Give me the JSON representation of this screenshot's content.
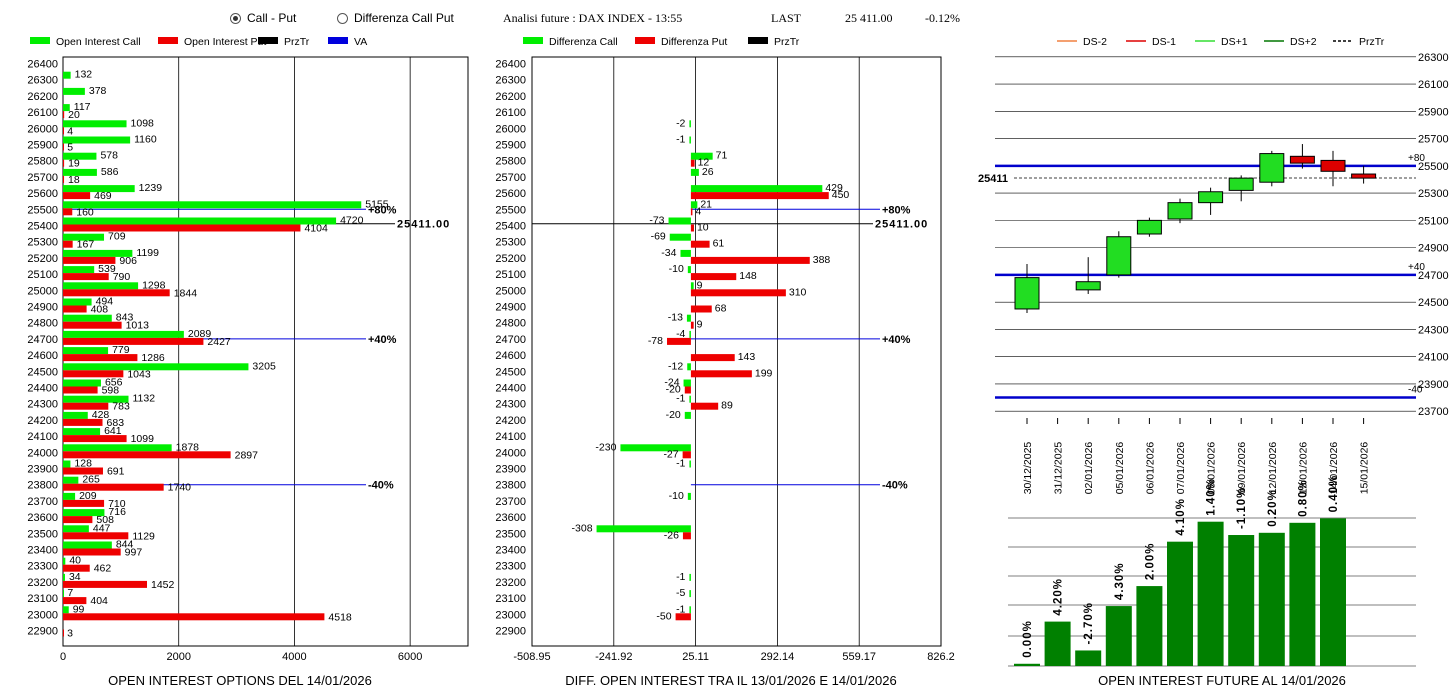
{
  "header": {
    "radio_call_put": "Call - Put",
    "radio_diff": "Differenza Call Put",
    "selected": "call_put",
    "title": "Analisi future : DAX INDEX - 13:55",
    "last_label": "LAST",
    "last_value": "25 411.00",
    "change": "-0.12%"
  },
  "strikes": [
    26400,
    26300,
    26200,
    26100,
    26000,
    25900,
    25800,
    25700,
    25600,
    25500,
    25400,
    25300,
    25200,
    25100,
    25000,
    24900,
    24800,
    24700,
    24600,
    24500,
    24400,
    24300,
    24200,
    24100,
    24000,
    23900,
    23800,
    23700,
    23600,
    23500,
    23400,
    23300,
    23200,
    23100,
    23000,
    22900
  ],
  "chart_data": [
    {
      "type": "bar",
      "orientation": "horizontal",
      "title": "OPEN INTEREST OPTIONS DEL 14/01/2026",
      "legend": [
        {
          "name": "Open Interest Call",
          "color": "#00ee00"
        },
        {
          "name": "Open Interest Put",
          "color": "#ee0000"
        },
        {
          "name": "PrzTr",
          "color": "#000000"
        },
        {
          "name": "VA",
          "color": "#0000dd"
        }
      ],
      "xlim": [
        0,
        7000
      ],
      "xticks": [
        "0",
        "2000",
        "4000",
        "6000"
      ],
      "categories": [
        26400,
        26300,
        26200,
        26100,
        26000,
        25900,
        25800,
        25700,
        25600,
        25500,
        25400,
        25300,
        25200,
        25100,
        25000,
        24900,
        24800,
        24700,
        24600,
        24500,
        24400,
        24300,
        24200,
        24100,
        24000,
        23900,
        23800,
        23700,
        23600,
        23500,
        23400,
        23300,
        23200,
        23100,
        23000,
        22900
      ],
      "series": [
        {
          "name": "Open Interest Call",
          "values": [
            null,
            132,
            378,
            117,
            1098,
            1160,
            578,
            586,
            1239,
            5155,
            4720,
            709,
            1199,
            539,
            1298,
            494,
            843,
            2089,
            779,
            3205,
            656,
            1132,
            428,
            641,
            1878,
            128,
            265,
            209,
            716,
            447,
            844,
            40,
            34,
            7,
            99,
            null
          ]
        },
        {
          "name": "Open Interest Put",
          "values": [
            null,
            null,
            null,
            20,
            4,
            5,
            19,
            18,
            469,
            160,
            4104,
            167,
            906,
            790,
            1844,
            408,
            1013,
            2427,
            1286,
            1043,
            598,
            783,
            683,
            1099,
            2897,
            691,
            1740,
            710,
            508,
            1129,
            997,
            462,
            1452,
            404,
            4518,
            3
          ]
        }
      ],
      "lines": [
        {
          "strike": 25500,
          "label": "+80%",
          "color": "#0000dd"
        },
        {
          "strike": 25411,
          "label": "25411.00",
          "color": "#000000"
        },
        {
          "strike": 24700,
          "label": "+40%",
          "color": "#0000dd"
        },
        {
          "strike": 23800,
          "label": "-40%",
          "color": "#0000dd"
        }
      ]
    },
    {
      "type": "bar",
      "orientation": "horizontal",
      "title": "DIFF. OPEN INTEREST TRA IL 13/01/2026 E 14/01/2026",
      "legend": [
        {
          "name": "Differenza Call",
          "color": "#00ee00"
        },
        {
          "name": "Differenza Put",
          "color": "#ee0000"
        },
        {
          "name": "PrzTr",
          "color": "#000000"
        }
      ],
      "xlim": [
        -508.95,
        826.2
      ],
      "xticks": [
        "-508.95",
        "-241.92",
        "25.11",
        "292.14",
        "559.17",
        "826.2"
      ],
      "categories": [
        26400,
        26300,
        26200,
        26100,
        26000,
        25900,
        25800,
        25700,
        25600,
        25500,
        25400,
        25300,
        25200,
        25100,
        25000,
        24900,
        24800,
        24700,
        24600,
        24500,
        24400,
        24300,
        24200,
        24100,
        24000,
        23900,
        23800,
        23700,
        23600,
        23500,
        23400,
        23300,
        23200,
        23100,
        23000,
        22900
      ],
      "series": [
        {
          "name": "Differenza Call",
          "values": [
            null,
            null,
            null,
            null,
            -2,
            -1,
            71,
            26,
            429,
            21,
            -73,
            -69,
            -34,
            -10,
            9,
            null,
            -13,
            -4,
            null,
            -12,
            -24,
            -1,
            -20,
            null,
            -230,
            -1,
            null,
            -10,
            null,
            -308,
            null,
            null,
            -1,
            -5,
            -1,
            null
          ]
        },
        {
          "name": "Differenza Put",
          "values": [
            null,
            null,
            null,
            null,
            null,
            null,
            12,
            null,
            450,
            4,
            10,
            61,
            388,
            148,
            310,
            68,
            9,
            -78,
            143,
            199,
            -20,
            89,
            null,
            null,
            -27,
            null,
            null,
            null,
            null,
            -26,
            null,
            null,
            null,
            null,
            -50,
            null
          ]
        }
      ],
      "lines": [
        {
          "strike": 25500,
          "label": "+80%",
          "color": "#0000dd"
        },
        {
          "strike": 25411,
          "label": "25411.00",
          "color": "#000000"
        },
        {
          "strike": 24700,
          "label": "+40%",
          "color": "#0000dd"
        },
        {
          "strike": 23800,
          "label": "-40%",
          "color": "#0000dd"
        }
      ]
    },
    {
      "type": "candlestick",
      "legend": [
        {
          "name": "DS-2",
          "color": "#f08040",
          "dash": false
        },
        {
          "name": "DS-1",
          "color": "#dd0000",
          "dash": false
        },
        {
          "name": "DS+1",
          "color": "#33dd33",
          "dash": false
        },
        {
          "name": "DS+2",
          "color": "#007700",
          "dash": false
        },
        {
          "name": "PrzTr",
          "color": "#000000",
          "dash": true
        }
      ],
      "ylim": [
        23650,
        26350
      ],
      "yticks": [
        26300,
        26100,
        25900,
        25700,
        25500,
        25300,
        25100,
        24900,
        24700,
        24500,
        24300,
        24100,
        23900,
        23700
      ],
      "dates": [
        "30/12/2025",
        "31/12/2025",
        "02/01/2026",
        "05/01/2026",
        "06/01/2026",
        "07/01/2026",
        "08/01/2026",
        "09/01/2026",
        "12/01/2026",
        "13/01/2026",
        "14/01/2026",
        "15/01/2026"
      ],
      "candles": [
        {
          "o": 24450,
          "h": 24780,
          "l": 24420,
          "c": 24680
        },
        null,
        {
          "o": 24590,
          "h": 24830,
          "l": 24560,
          "c": 24650
        },
        {
          "o": 24700,
          "h": 25020,
          "l": 24680,
          "c": 24980
        },
        {
          "o": 25000,
          "h": 25120,
          "l": 24980,
          "c": 25100
        },
        {
          "o": 25110,
          "h": 25260,
          "l": 25080,
          "c": 25230
        },
        {
          "o": 25230,
          "h": 25340,
          "l": 25140,
          "c": 25310
        },
        {
          "o": 25320,
          "h": 25430,
          "l": 25240,
          "c": 25410
        },
        {
          "o": 25380,
          "h": 25610,
          "l": 25350,
          "c": 25590
        },
        {
          "o": 25570,
          "h": 25660,
          "l": 25480,
          "c": 25520
        },
        {
          "o": 25540,
          "h": 25610,
          "l": 25350,
          "c": 25460
        },
        {
          "o": 25440,
          "h": 25500,
          "l": 25370,
          "c": 25410
        }
      ],
      "levels": [
        {
          "value": 25500,
          "label": "+80",
          "color": "#0000cc"
        },
        {
          "value": 24700,
          "label": "+40",
          "color": "#0000cc"
        },
        {
          "value": 23800,
          "label": "-40",
          "color": "#0000cc"
        }
      ],
      "last": {
        "value": 25411,
        "label": "25411"
      }
    },
    {
      "type": "bar",
      "title": "OPEN INTEREST FUTURE AL 14/01/2026",
      "categories": [
        "30/12/2025",
        "31/12/2025",
        "02/01/2026",
        "05/01/2026",
        "06/01/2026",
        "07/01/2026",
        "08/01/2026",
        "09/01/2026",
        "12/01/2026",
        "13/01/2026",
        "14/01/2026",
        "15/01/2026"
      ],
      "values": [
        1.0,
        20.0,
        7.0,
        27.0,
        36.0,
        56.0,
        65.0,
        59.0,
        60.0,
        64.5,
        66.5
      ],
      "labels": [
        "0.00%",
        "4.20%",
        "-2.70%",
        "4.30%",
        "2.00%",
        "4.10%",
        "1.40%",
        "-1.10%",
        "0.20%",
        "0.80%",
        "0.40%"
      ],
      "ylim": [
        0,
        100
      ],
      "color": "#008000"
    }
  ]
}
